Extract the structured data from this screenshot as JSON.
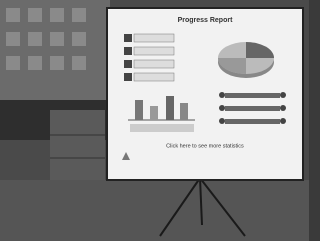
{
  "board": {
    "title": "Progress Report",
    "footer": "Click here to see more statistics"
  }
}
